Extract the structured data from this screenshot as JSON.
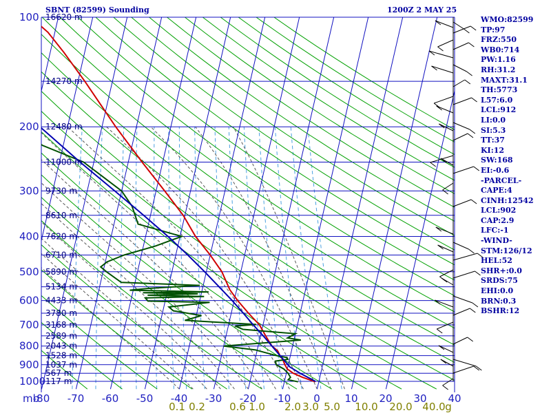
{
  "header": {
    "station": "SBNT (82599) Sounding",
    "datetime": "1200Z  2 MAY 25"
  },
  "indices": [
    "WMO:82599",
    "TP:97",
    "FRZ:550",
    "WB0:714",
    "PW:1.16",
    "RH:31.2",
    "MAXT:31.1",
    "TH:5773",
    "L57:6.0",
    "LCL:912",
    "LI:0.0",
    "SI:5.3",
    "TT:37",
    "KI:12",
    "SW:168",
    "EI:-0.6",
    "-PARCEL-",
    "CAPE:4",
    "CINH:12542",
    "LCL:902",
    "CAP:2.9",
    "LFC:-1",
    "-WIND-",
    "STM:126/12",
    "HEL:52",
    "SHR+:0.0",
    "SRDS:75",
    "EHI:0.0",
    "BRN:0.3",
    "BSHR:12"
  ],
  "colors": {
    "background": "#ffffff",
    "grid": "#1010c0",
    "dry_adiabat": "#00a000",
    "moist_adiabat": "#555555",
    "mixing_ratio": "#4aa0e0",
    "temperature": "#d00000",
    "dewpoint": "#005000",
    "parcel": "#0000b0",
    "wind": "#000000"
  },
  "chart_data": {
    "type": "skew-t",
    "pressure_axis_unit": "mb",
    "pressure_ticks": [
      100,
      200,
      300,
      400,
      500,
      600,
      700,
      800,
      900,
      1000
    ],
    "height_labels": [
      {
        "p": 100,
        "text": "16620 m"
      },
      {
        "p": 150,
        "text": "14270 m"
      },
      {
        "p": 200,
        "text": "12480 m"
      },
      {
        "p": 250,
        "text": "11000 m"
      },
      {
        "p": 300,
        "text": "9730 m"
      },
      {
        "p": 350,
        "text": "8610 m"
      },
      {
        "p": 400,
        "text": "7620 m"
      },
      {
        "p": 450,
        "text": "6710 m"
      },
      {
        "p": 500,
        "text": "5890 m"
      },
      {
        "p": 550,
        "text": "5134 m"
      },
      {
        "p": 600,
        "text": "4433 m"
      },
      {
        "p": 650,
        "text": "3780 m"
      },
      {
        "p": 700,
        "text": "3168 m"
      },
      {
        "p": 750,
        "text": "2589 m"
      },
      {
        "p": 800,
        "text": "2043 m"
      },
      {
        "p": 850,
        "text": "1528 m"
      },
      {
        "p": 900,
        "text": "1037 m"
      },
      {
        "p": 950,
        "text": "567 m"
      },
      {
        "p": 1000,
        "text": "117 m"
      }
    ],
    "temperature_ticks": [
      -80,
      -70,
      -60,
      -50,
      -40,
      -30,
      -20,
      -10,
      0,
      10,
      20,
      30,
      40
    ],
    "mixing_ratio_labels": [
      "0.1",
      "0.2",
      "0.6",
      "1.0",
      "2.0",
      "3.0",
      "5.0",
      "10.0",
      "20.0",
      "40.0",
      "g"
    ],
    "series": [
      {
        "name": "temperature",
        "points": [
          [
            1003,
            29.0
          ],
          [
            975,
            25.0
          ],
          [
            950,
            22.0
          ],
          [
            925,
            20.0
          ],
          [
            900,
            19.0
          ],
          [
            870,
            18.0
          ],
          [
            850,
            17.0
          ],
          [
            825,
            16.0
          ],
          [
            800,
            14.0
          ],
          [
            780,
            13.0
          ],
          [
            750,
            11.5
          ],
          [
            720,
            10.0
          ],
          [
            700,
            9.0
          ],
          [
            650,
            5.0
          ],
          [
            600,
            1.0
          ],
          [
            560,
            -2.0
          ],
          [
            500,
            -5.5
          ],
          [
            450,
            -10.0
          ],
          [
            400,
            -15.5
          ],
          [
            350,
            -20.5
          ],
          [
            300,
            -27.5
          ],
          [
            250,
            -36.0
          ],
          [
            200,
            -46.0
          ],
          [
            150,
            -58.0
          ],
          [
            125,
            -66.0
          ],
          [
            110,
            -72.0
          ],
          [
            100,
            -78.0
          ]
        ]
      },
      {
        "name": "dewpoint",
        "points": [
          [
            1003,
            24.0
          ],
          [
            990,
            21.0
          ],
          [
            975,
            21.5
          ],
          [
            950,
            20.5
          ],
          [
            925,
            19.0
          ],
          [
            900,
            16.5
          ],
          [
            880,
            16.0
          ],
          [
            870,
            19.5
          ],
          [
            860,
            19.0
          ],
          [
            850,
            16.0
          ],
          [
            820,
            9.5
          ],
          [
            800,
            0.0
          ],
          [
            770,
            22.0
          ],
          [
            760,
            18.0
          ],
          [
            740,
            20.0
          ],
          [
            720,
            4.5
          ],
          [
            705,
            2.0
          ],
          [
            698,
            8.0
          ],
          [
            680,
            -13.0
          ],
          [
            660,
            -8.5
          ],
          [
            640,
            -17.0
          ],
          [
            625,
            -18.5
          ],
          [
            607,
            -7.0
          ],
          [
            602,
            -25.0
          ],
          [
            590,
            -26.0
          ],
          [
            585,
            -9.0
          ],
          [
            580,
            -25.5
          ],
          [
            575,
            -11.0
          ],
          [
            571,
            -27.0
          ],
          [
            568,
            -8.0
          ],
          [
            562,
            -31.0
          ],
          [
            556,
            -26.0
          ],
          [
            545,
            -11.0
          ],
          [
            535,
            -34.0
          ],
          [
            500,
            -39.0
          ],
          [
            485,
            -41.0
          ],
          [
            470,
            -39.5
          ],
          [
            450,
            -35.0
          ],
          [
            425,
            -26.5
          ],
          [
            400,
            -19.5
          ],
          [
            370,
            -33.0
          ],
          [
            330,
            -36.0
          ],
          [
            300,
            -40.0
          ],
          [
            250,
            -53.0
          ],
          [
            225,
            -66.0
          ],
          [
            200,
            -75.0
          ],
          [
            170,
            -80.0
          ],
          [
            150,
            -81.0
          ],
          [
            130,
            -82.0
          ]
        ]
      },
      {
        "name": "parcel",
        "points": [
          [
            1000,
            29.0
          ],
          [
            950,
            24.0
          ],
          [
            912,
            20.5
          ],
          [
            902,
            20.0
          ],
          [
            850,
            17.0
          ],
          [
            800,
            14.0
          ],
          [
            750,
            10.8
          ],
          [
            700,
            7.2
          ],
          [
            650,
            3.5
          ],
          [
            600,
            -0.6
          ],
          [
            550,
            -5.3
          ],
          [
            500,
            -10.5
          ],
          [
            450,
            -16.5
          ],
          [
            400,
            -23.5
          ],
          [
            350,
            -32.0
          ],
          [
            300,
            -42.0
          ],
          [
            250,
            -54.0
          ],
          [
            200,
            -68.0
          ],
          [
            150,
            -85.0
          ],
          [
            120,
            -97.0
          ]
        ]
      }
    ],
    "grid": true,
    "legend": "none"
  }
}
